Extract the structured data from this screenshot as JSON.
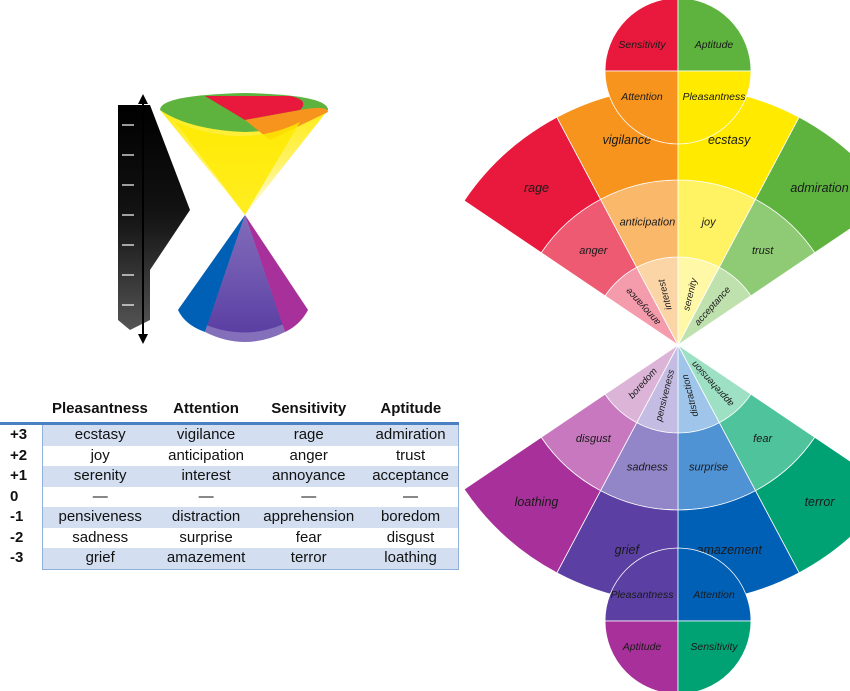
{
  "table": {
    "headers": [
      "",
      "Pleasantness",
      "Attention",
      "Sensitivity",
      "Aptitude"
    ],
    "rows": [
      {
        "level": "+3",
        "cells": [
          "ecstasy",
          "vigilance",
          "rage",
          "admiration"
        ]
      },
      {
        "level": "+2",
        "cells": [
          "joy",
          "anticipation",
          "anger",
          "trust"
        ]
      },
      {
        "level": "+1",
        "cells": [
          "serenity",
          "interest",
          "annoyance",
          "acceptance"
        ]
      },
      {
        "level": "0",
        "cells": [
          "—",
          "—",
          "—",
          "—"
        ]
      },
      {
        "level": "-1",
        "cells": [
          "pensiveness",
          "distraction",
          "apprehension",
          "boredom"
        ]
      },
      {
        "level": "-2",
        "cells": [
          "sadness",
          "surprise",
          "fear",
          "disgust"
        ]
      },
      {
        "level": "-3",
        "cells": [
          "grief",
          "amazement",
          "terror",
          "loathing"
        ]
      }
    ]
  },
  "top_circle": [
    "Sensitivity",
    "Aptitude",
    "Attention",
    "Pleasantness"
  ],
  "bottom_circle": [
    "Pleasantness",
    "Attention",
    "Aptitude",
    "Sensitivity"
  ],
  "upper_fan": {
    "outer": [
      "rage",
      "vigilance",
      "ecstasy",
      "admiration"
    ],
    "middle": [
      "anger",
      "anticipation",
      "joy",
      "trust"
    ],
    "inner": [
      "annoyance",
      "interest",
      "serenity",
      "acceptance"
    ]
  },
  "lower_fan": {
    "outer": [
      "loathing",
      "grief",
      "amazement",
      "terror"
    ],
    "middle": [
      "disgust",
      "sadness",
      "surprise",
      "fear"
    ],
    "inner": [
      "boredom",
      "pensiveness",
      "distraction",
      "apprehension"
    ]
  },
  "colors": {
    "rage": "#e8193c",
    "vigilance": "#f7941d",
    "ecstasy": "#ffea00",
    "admiration": "#5db33e",
    "anger": "#ee5a72",
    "anticipation": "#fab86b",
    "joy": "#fff263",
    "trust": "#8ecb74",
    "annoyance": "#f49bac",
    "interest": "#fcd5a6",
    "serenity": "#fff8a6",
    "acceptance": "#bfe1ae",
    "loathing": "#a8309a",
    "grief": "#5b3fa3",
    "amazement": "#0060b6",
    "terror": "#00a274",
    "disgust": "#c878bf",
    "sadness": "#9386c8",
    "surprise": "#4f93d4",
    "fear": "#4fc39b",
    "boredom": "#dcb4d7",
    "pensiveness": "#c4bce2",
    "distraction": "#9fc6ea",
    "apprehension": "#9ee0c4",
    "Sensitivity": "#e8193c",
    "Aptitude": "#5db33e",
    "Attention": "#f7941d",
    "Pleasantness": "#ffea00",
    "b_Pleasantness": "#5b3fa3",
    "b_Attention": "#0060b6",
    "b_Aptitude": "#a8309a",
    "b_Sensitivity": "#00a274",
    "table_accent": "#4a7fc1",
    "row_shade": "#d3dff1"
  },
  "cone": {
    "upper_colors": [
      "#ffea00",
      "#fff263",
      "#fff8a6",
      "#fffde0"
    ],
    "lower_colors": [
      "#c4bce2",
      "#9386c8",
      "#5b3fa3"
    ],
    "rim_top": [
      "#5db33e",
      "#e8193c",
      "#f7941d",
      "#ffea00"
    ],
    "rim_bottom": [
      "#0060b6",
      "#a8309a",
      "#5b3fa3"
    ],
    "scale_shades": [
      "#000000",
      "#111111",
      "#222222",
      "#333333",
      "#444444",
      "#555555",
      "#666666"
    ]
  }
}
